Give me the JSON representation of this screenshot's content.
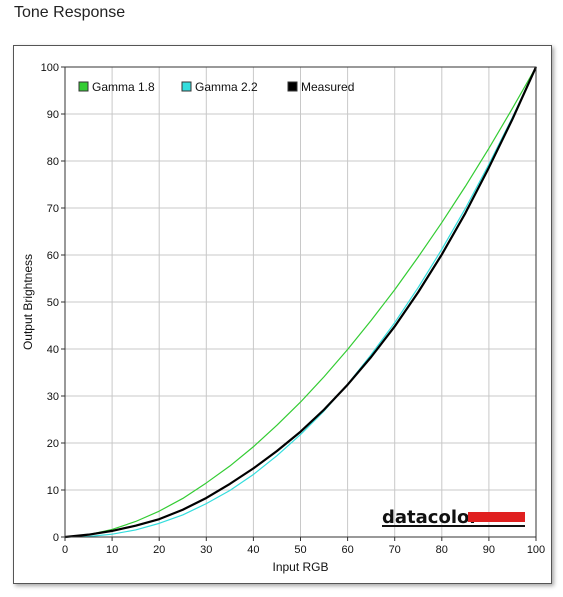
{
  "page": {
    "title": "Tone Response"
  },
  "chart_data": {
    "type": "line",
    "title": "",
    "xlabel": "Input RGB",
    "ylabel": "Output Brightness",
    "xlim": [
      0,
      100
    ],
    "ylim": [
      0,
      100
    ],
    "xticks": [
      "0",
      "10",
      "20",
      "30",
      "40",
      "50",
      "60",
      "70",
      "80",
      "90",
      "100"
    ],
    "yticks": [
      "0",
      "10",
      "20",
      "30",
      "40",
      "50",
      "60",
      "70",
      "80",
      "90",
      "100"
    ],
    "grid": true,
    "legend_position": "top-left",
    "series": [
      {
        "name": "Gamma 1.8",
        "color": "#33cc33",
        "x": [
          0,
          5,
          10,
          15,
          20,
          25,
          30,
          35,
          40,
          45,
          50,
          55,
          60,
          65,
          70,
          75,
          80,
          85,
          90,
          95,
          100
        ],
        "y": [
          0,
          0.5,
          1.6,
          3.3,
          5.5,
          8.2,
          11.5,
          15.1,
          19.2,
          23.8,
          28.7,
          34.1,
          39.9,
          46.1,
          52.6,
          59.6,
          66.9,
          74.6,
          82.7,
          91.2,
          100
        ]
      },
      {
        "name": "Gamma 2.2",
        "color": "#33dddd",
        "x": [
          0,
          5,
          10,
          15,
          20,
          25,
          30,
          35,
          40,
          45,
          50,
          55,
          60,
          65,
          70,
          75,
          80,
          85,
          90,
          95,
          100
        ],
        "y": [
          0,
          0.1,
          0.6,
          1.5,
          2.9,
          4.7,
          7.1,
          9.9,
          13.3,
          17.3,
          21.8,
          26.8,
          32.5,
          38.8,
          45.6,
          53.1,
          61.2,
          69.9,
          79.3,
          89.3,
          100
        ]
      },
      {
        "name": "Measured",
        "color": "#000000",
        "x": [
          0,
          5,
          10,
          15,
          20,
          25,
          30,
          35,
          40,
          45,
          50,
          55,
          60,
          65,
          70,
          75,
          80,
          85,
          90,
          95,
          100
        ],
        "y": [
          0,
          0.5,
          1.3,
          2.4,
          3.8,
          5.8,
          8.3,
          11.3,
          14.6,
          18.3,
          22.4,
          27.1,
          32.4,
          38.3,
          44.8,
          52.1,
          60.1,
          68.9,
          78.6,
          88.9,
          100
        ]
      }
    ]
  },
  "branding": {
    "logo_text": "datacolor",
    "logo_bar_color": "#e02020"
  }
}
